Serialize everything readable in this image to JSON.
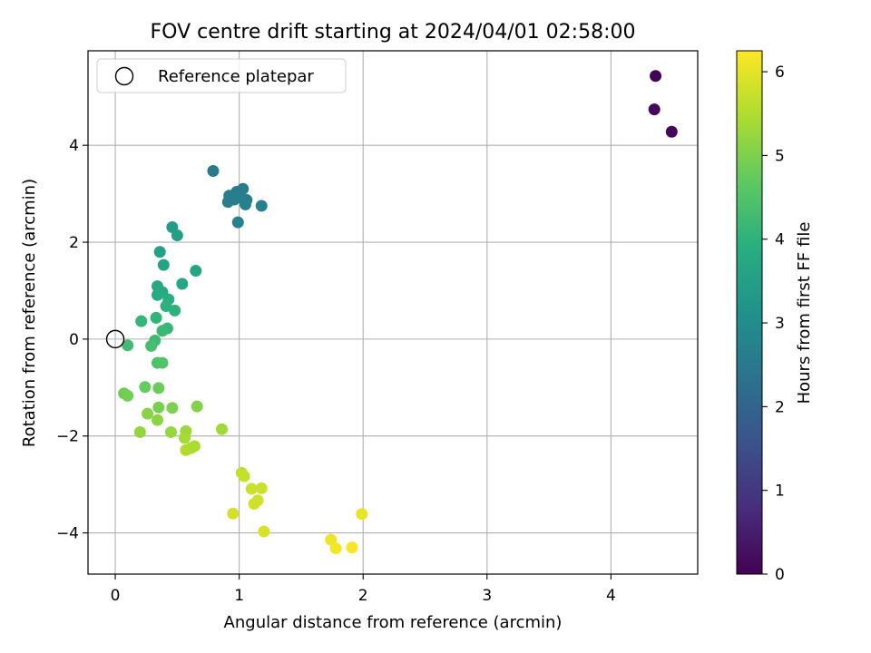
{
  "chart_data": {
    "type": "scatter",
    "title": "FOV centre drift starting at 2024/04/01 02:58:00",
    "xlabel": "Angular distance from reference (arcmin)",
    "ylabel": "Rotation from reference (arcmin)",
    "xlim": [
      -0.22,
      4.7
    ],
    "ylim": [
      -4.85,
      5.95
    ],
    "x_ticks": [
      0,
      1,
      2,
      3,
      4
    ],
    "x_tick_labels": [
      "0",
      "1",
      "2",
      "3",
      "4"
    ],
    "y_ticks": [
      -4,
      -2,
      0,
      2,
      4
    ],
    "y_tick_labels": [
      "−4",
      "−2",
      "0",
      "2",
      "4"
    ],
    "grid": true,
    "legend": {
      "placement": "top-left",
      "entries": [
        "Reference platepar"
      ]
    },
    "reference_point": {
      "x": 0,
      "y": 0
    },
    "colorbar": {
      "label": "Hours from first FF file",
      "colormap": "viridis",
      "range": [
        0,
        6.25
      ],
      "ticks": [
        0,
        1,
        2,
        3,
        4,
        5,
        6
      ],
      "tick_labels": [
        "0",
        "1",
        "2",
        "3",
        "4",
        "5",
        "6"
      ]
    },
    "points": [
      {
        "x": 4.36,
        "y": 5.43,
        "c": 0.05
      },
      {
        "x": 4.35,
        "y": 4.74,
        "c": 0.1
      },
      {
        "x": 4.49,
        "y": 4.28,
        "c": 0.15
      },
      {
        "x": 0.79,
        "y": 3.47,
        "c": 2.55
      },
      {
        "x": 1.03,
        "y": 3.1,
        "c": 2.6
      },
      {
        "x": 0.98,
        "y": 3.04,
        "c": 2.6
      },
      {
        "x": 0.92,
        "y": 2.96,
        "c": 2.62
      },
      {
        "x": 1.06,
        "y": 2.87,
        "c": 2.62
      },
      {
        "x": 0.96,
        "y": 2.88,
        "c": 2.65
      },
      {
        "x": 0.91,
        "y": 2.83,
        "c": 2.65
      },
      {
        "x": 1.01,
        "y": 2.92,
        "c": 2.65
      },
      {
        "x": 1.05,
        "y": 2.78,
        "c": 2.7
      },
      {
        "x": 1.18,
        "y": 2.75,
        "c": 2.7
      },
      {
        "x": 0.99,
        "y": 2.41,
        "c": 2.75
      },
      {
        "x": 0.46,
        "y": 2.31,
        "c": 3.45
      },
      {
        "x": 0.5,
        "y": 2.14,
        "c": 3.5
      },
      {
        "x": 0.36,
        "y": 1.8,
        "c": 3.55
      },
      {
        "x": 0.39,
        "y": 1.53,
        "c": 3.6
      },
      {
        "x": 0.65,
        "y": 1.41,
        "c": 3.65
      },
      {
        "x": 0.54,
        "y": 1.14,
        "c": 3.7
      },
      {
        "x": 0.34,
        "y": 1.09,
        "c": 3.75
      },
      {
        "x": 0.38,
        "y": 0.97,
        "c": 3.8
      },
      {
        "x": 0.34,
        "y": 0.91,
        "c": 3.85
      },
      {
        "x": 0.43,
        "y": 0.82,
        "c": 3.9
      },
      {
        "x": 0.41,
        "y": 0.68,
        "c": 3.95
      },
      {
        "x": 0.48,
        "y": 0.59,
        "c": 4.0
      },
      {
        "x": 0.33,
        "y": 0.44,
        "c": 4.05
      },
      {
        "x": 0.21,
        "y": 0.37,
        "c": 4.1
      },
      {
        "x": 0.42,
        "y": 0.22,
        "c": 4.15
      },
      {
        "x": 0.38,
        "y": 0.17,
        "c": 4.2
      },
      {
        "x": 0.32,
        "y": -0.03,
        "c": 4.25
      },
      {
        "x": 0.1,
        "y": -0.13,
        "c": 4.3
      },
      {
        "x": 0.29,
        "y": -0.14,
        "c": 4.35
      },
      {
        "x": 0.34,
        "y": -0.49,
        "c": 4.45
      },
      {
        "x": 0.38,
        "y": -0.49,
        "c": 4.5
      },
      {
        "x": 0.24,
        "y": -0.99,
        "c": 4.75
      },
      {
        "x": 0.35,
        "y": -1.01,
        "c": 4.8
      },
      {
        "x": 0.07,
        "y": -1.12,
        "c": 4.85
      },
      {
        "x": 0.1,
        "y": -1.17,
        "c": 4.9
      },
      {
        "x": 0.35,
        "y": -1.41,
        "c": 4.95
      },
      {
        "x": 0.46,
        "y": -1.42,
        "c": 5.0
      },
      {
        "x": 0.66,
        "y": -1.39,
        "c": 5.05
      },
      {
        "x": 0.26,
        "y": -1.54,
        "c": 5.1
      },
      {
        "x": 0.34,
        "y": -1.67,
        "c": 5.15
      },
      {
        "x": 0.2,
        "y": -1.92,
        "c": 5.2
      },
      {
        "x": 0.45,
        "y": -1.92,
        "c": 5.25
      },
      {
        "x": 0.57,
        "y": -1.9,
        "c": 5.3
      },
      {
        "x": 0.86,
        "y": -1.86,
        "c": 5.35
      },
      {
        "x": 0.56,
        "y": -2.04,
        "c": 5.4
      },
      {
        "x": 0.64,
        "y": -2.21,
        "c": 5.45
      },
      {
        "x": 0.61,
        "y": -2.25,
        "c": 5.45
      },
      {
        "x": 0.57,
        "y": -2.29,
        "c": 5.5
      },
      {
        "x": 1.02,
        "y": -2.76,
        "c": 5.65
      },
      {
        "x": 1.04,
        "y": -2.83,
        "c": 5.7
      },
      {
        "x": 1.1,
        "y": -3.09,
        "c": 5.75
      },
      {
        "x": 1.18,
        "y": -3.08,
        "c": 5.75
      },
      {
        "x": 1.15,
        "y": -3.33,
        "c": 5.8
      },
      {
        "x": 1.12,
        "y": -3.4,
        "c": 5.8
      },
      {
        "x": 0.95,
        "y": -3.6,
        "c": 5.85
      },
      {
        "x": 1.2,
        "y": -3.97,
        "c": 5.9
      },
      {
        "x": 1.99,
        "y": -3.61,
        "c": 6.05
      },
      {
        "x": 1.74,
        "y": -4.14,
        "c": 6.1
      },
      {
        "x": 1.78,
        "y": -4.32,
        "c": 6.15
      },
      {
        "x": 1.91,
        "y": -4.3,
        "c": 6.2
      }
    ]
  }
}
